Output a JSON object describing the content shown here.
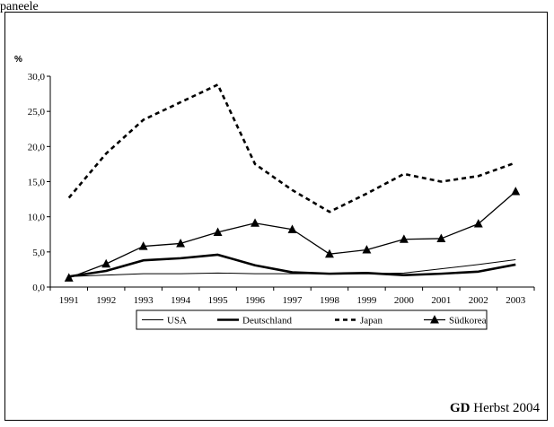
{
  "header_text": "paneele",
  "chart_data": {
    "type": "line",
    "unit_label": "%",
    "x": [
      "1991",
      "1992",
      "1993",
      "1994",
      "1995",
      "1996",
      "1997",
      "1998",
      "1999",
      "2000",
      "2001",
      "2002",
      "2003"
    ],
    "y_ticks": [
      "0,0",
      "5,0",
      "10,0",
      "15,0",
      "20,0",
      "25,0",
      "30,0"
    ],
    "ylim": [
      0,
      30
    ],
    "grid": false,
    "legend_position": "bottom",
    "series": [
      {
        "name": "USA",
        "style": "thin",
        "color": "#000000",
        "values": [
          1.5,
          1.7,
          1.9,
          1.9,
          2.0,
          1.9,
          1.9,
          1.9,
          1.9,
          2.0,
          2.6,
          3.2,
          3.9
        ]
      },
      {
        "name": "Deutschland",
        "style": "bold",
        "color": "#000000",
        "values": [
          1.5,
          2.3,
          3.8,
          4.1,
          4.6,
          3.1,
          2.1,
          1.9,
          2.0,
          1.7,
          1.9,
          2.2,
          3.2
        ]
      },
      {
        "name": "Japan",
        "style": "dashed",
        "color": "#000000",
        "values": [
          12.7,
          19.0,
          23.8,
          26.3,
          28.8,
          17.5,
          13.8,
          10.7,
          13.3,
          16.1,
          15.0,
          15.8,
          17.7
        ]
      },
      {
        "name": "Südkorea",
        "style": "triangle",
        "color": "#000000",
        "values": [
          1.3,
          3.3,
          5.8,
          6.2,
          7.8,
          9.1,
          8.2,
          4.7,
          5.3,
          6.8,
          6.9,
          9.0,
          13.6
        ]
      }
    ]
  },
  "source": {
    "brand": "GD",
    "text": " Herbst 2004"
  }
}
